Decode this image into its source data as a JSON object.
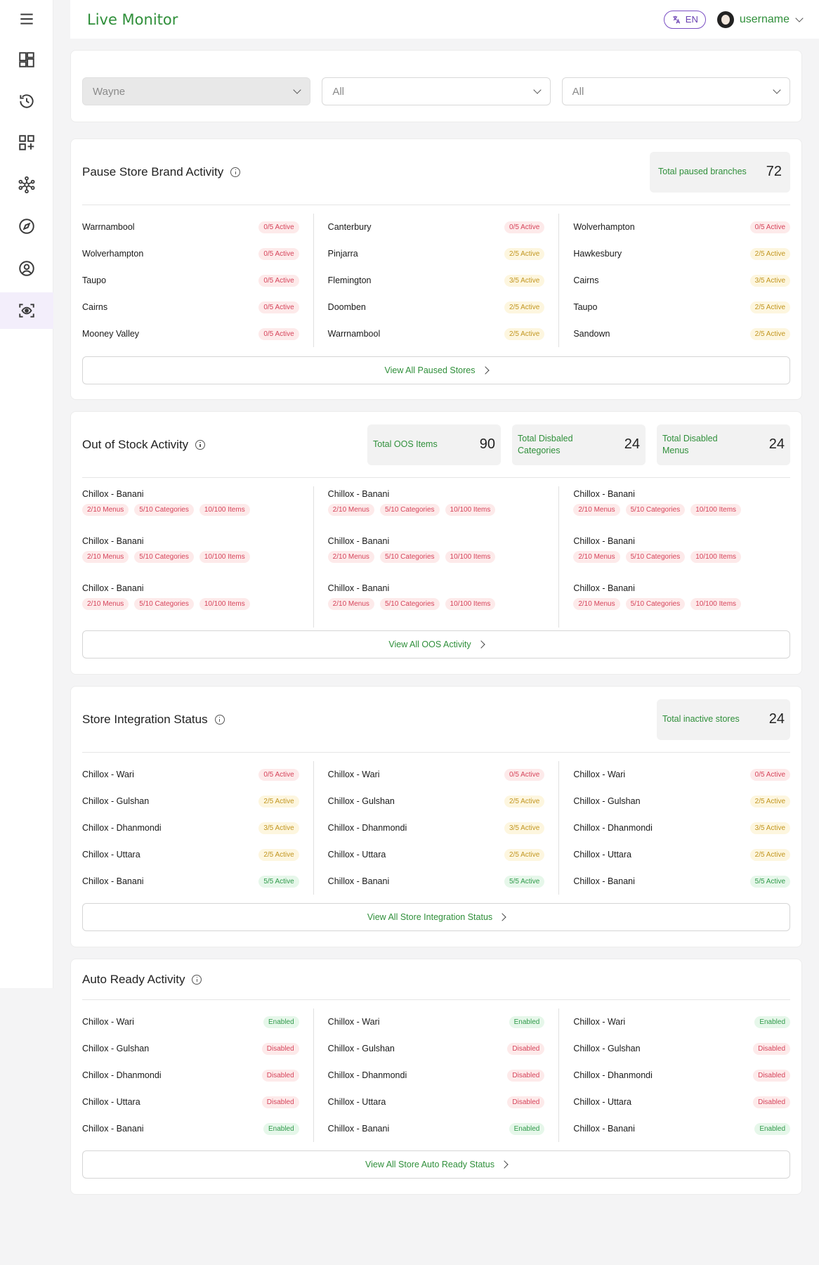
{
  "header": {
    "title": "Live Monitor",
    "lang": "EN",
    "username": "username"
  },
  "filters": {
    "brand": "Wayne",
    "second": "All",
    "third": "All"
  },
  "pause": {
    "title": "Pause Store Brand Activity",
    "stat_label": "Total paused branches",
    "stat_value": "72",
    "columns": [
      [
        [
          "Warrnambool",
          "0/5 Active",
          "red"
        ],
        [
          "Wolverhampton",
          "0/5 Active",
          "red"
        ],
        [
          "Taupo",
          "0/5 Active",
          "red"
        ],
        [
          "Cairns",
          "0/5 Active",
          "red"
        ],
        [
          "Mooney Valley",
          "0/5 Active",
          "red"
        ]
      ],
      [
        [
          "Canterbury",
          "0/5 Active",
          "red"
        ],
        [
          "Pinjarra",
          "2/5 Active",
          "yellow"
        ],
        [
          "Flemington",
          "3/5 Active",
          "yellow"
        ],
        [
          "Doomben",
          "2/5 Active",
          "yellow"
        ],
        [
          "Warrnambool",
          "2/5 Active",
          "yellow"
        ]
      ],
      [
        [
          "Wolverhampton",
          "0/5 Active",
          "red"
        ],
        [
          "Hawkesbury",
          "2/5 Active",
          "yellow"
        ],
        [
          "Cairns",
          "3/5 Active",
          "yellow"
        ],
        [
          "Taupo",
          "2/5 Active",
          "yellow"
        ],
        [
          "Sandown",
          "2/5 Active",
          "yellow"
        ]
      ]
    ],
    "view_label": "View All Paused Stores"
  },
  "oos": {
    "title": "Out of Stock Activity",
    "stats": [
      {
        "label": "Total OOS Items",
        "value": "90"
      },
      {
        "label": "Total Disbaled Categories",
        "value": "24"
      },
      {
        "label": "Total Disabled Menus",
        "value": "24"
      }
    ],
    "columns": [
      [
        {
          "name": "Chillox - Banani",
          "menus": "2/10 Menus",
          "cats": "5/10 Categories",
          "items": "10/100 Items"
        },
        {
          "name": "Chillox - Banani",
          "menus": "2/10 Menus",
          "cats": "5/10 Categories",
          "items": "10/100 Items"
        },
        {
          "name": "Chillox - Banani",
          "menus": "2/10 Menus",
          "cats": "5/10 Categories",
          "items": "10/100 Items"
        }
      ],
      [
        {
          "name": "Chillox - Banani",
          "menus": "2/10 Menus",
          "cats": "5/10 Categories",
          "items": "10/100 Items"
        },
        {
          "name": "Chillox - Banani",
          "menus": "2/10 Menus",
          "cats": "5/10 Categories",
          "items": "10/100 Items"
        },
        {
          "name": "Chillox - Banani",
          "menus": "2/10 Menus",
          "cats": "5/10 Categories",
          "items": "10/100 Items"
        }
      ],
      [
        {
          "name": "Chillox - Banani",
          "menus": "2/10 Menus",
          "cats": "5/10 Categories",
          "items": "10/100 Items"
        },
        {
          "name": "Chillox - Banani",
          "menus": "2/10 Menus",
          "cats": "5/10 Categories",
          "items": "10/100 Items"
        },
        {
          "name": "Chillox - Banani",
          "menus": "2/10 Menus",
          "cats": "5/10 Categories",
          "items": "10/100 Items"
        }
      ]
    ],
    "view_label": "View All OOS Activity"
  },
  "integration": {
    "title": "Store Integration Status",
    "stat_label": "Total inactive stores",
    "stat_value": "24",
    "columns": [
      [
        [
          "Chillox - Wari",
          "0/5 Active",
          "red"
        ],
        [
          "Chillox - Gulshan",
          "2/5 Active",
          "yellow"
        ],
        [
          "Chillox - Dhanmondi",
          "3/5 Active",
          "yellow"
        ],
        [
          "Chillox - Uttara",
          "2/5 Active",
          "yellow"
        ],
        [
          "Chillox - Banani",
          "5/5 Active",
          "green"
        ]
      ],
      [
        [
          "Chillox - Wari",
          "0/5 Active",
          "red"
        ],
        [
          "Chillox - Gulshan",
          "2/5 Active",
          "yellow"
        ],
        [
          "Chillox - Dhanmondi",
          "3/5 Active",
          "yellow"
        ],
        [
          "Chillox - Uttara",
          "2/5 Active",
          "yellow"
        ],
        [
          "Chillox - Banani",
          "5/5 Active",
          "green"
        ]
      ],
      [
        [
          "Chillox - Wari",
          "0/5 Active",
          "red"
        ],
        [
          "Chillox - Gulshan",
          "2/5 Active",
          "yellow"
        ],
        [
          "Chillox - Dhanmondi",
          "3/5 Active",
          "yellow"
        ],
        [
          "Chillox - Uttara",
          "2/5 Active",
          "yellow"
        ],
        [
          "Chillox - Banani",
          "5/5 Active",
          "green"
        ]
      ]
    ],
    "view_label": "View All Store Integration Status"
  },
  "auto": {
    "title": "Auto Ready Activity",
    "columns": [
      [
        [
          "Chillox - Wari",
          "Enabled",
          "green"
        ],
        [
          "Chillox - Gulshan",
          "Disabled",
          "red"
        ],
        [
          "Chillox - Dhanmondi",
          "Disabled",
          "red"
        ],
        [
          "Chillox - Uttara",
          "Disabled",
          "red"
        ],
        [
          "Chillox - Banani",
          "Enabled",
          "green"
        ]
      ],
      [
        [
          "Chillox - Wari",
          "Enabled",
          "green"
        ],
        [
          "Chillox - Gulshan",
          "Disabled",
          "red"
        ],
        [
          "Chillox - Dhanmondi",
          "Disabled",
          "red"
        ],
        [
          "Chillox - Uttara",
          "Disabled",
          "red"
        ],
        [
          "Chillox - Banani",
          "Enabled",
          "green"
        ]
      ],
      [
        [
          "Chillox - Wari",
          "Enabled",
          "green"
        ],
        [
          "Chillox - Gulshan",
          "Disabled",
          "red"
        ],
        [
          "Chillox - Dhanmondi",
          "Disabled",
          "red"
        ],
        [
          "Chillox - Uttara",
          "Disabled",
          "red"
        ],
        [
          "Chillox - Banani",
          "Enabled",
          "green"
        ]
      ]
    ],
    "view_label": "View All Store Auto Ready Status"
  },
  "sidebar": {
    "icons": [
      "menu-icon",
      "dashboard-icon",
      "history-icon",
      "add-widget-icon",
      "network-icon",
      "compass-icon",
      "user-circle-icon",
      "live-monitor-icon"
    ]
  },
  "colors": {
    "accent_green": "#2f8f3a",
    "accent_purple": "#6a40b2",
    "badge_red": "#d6445b",
    "badge_yellow": "#c29620",
    "badge_green": "#2f9a4a"
  }
}
